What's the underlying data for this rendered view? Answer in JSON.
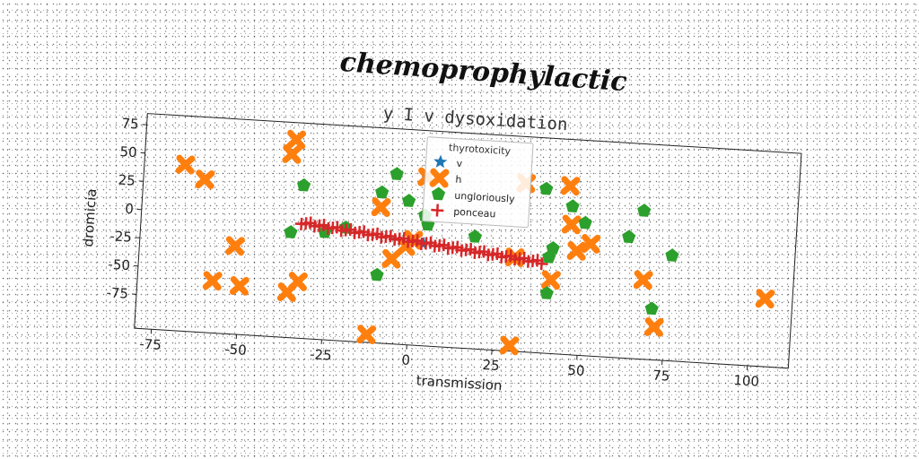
{
  "suptitle": "chemoprophylactic",
  "chart_data": {
    "type": "scatter",
    "title": "y I v dysoxidation",
    "xlabel": "transmission",
    "ylabel": "dromicia",
    "xlim": [
      -80,
      112
    ],
    "ylim": [
      -105,
      85
    ],
    "xticks": [
      "-75",
      "-50",
      "-25",
      "0",
      "25",
      "50",
      "75",
      "100"
    ],
    "xtick_values": [
      -75,
      -50,
      -25,
      0,
      25,
      50,
      75,
      100
    ],
    "yticks": [
      "75",
      "50",
      "25",
      "0",
      "-25",
      "-50",
      "-75"
    ],
    "ytick_values": [
      75,
      50,
      25,
      0,
      -25,
      -50,
      -75
    ],
    "legend": {
      "title": "thyrotoxicity",
      "position": "upper center"
    },
    "series": [
      {
        "name": "v",
        "marker": "star",
        "color": "#1f77b4",
        "points": [
          [
            3,
            -15
          ]
        ]
      },
      {
        "name": "h",
        "marker": "x",
        "color": "#ff7f0e",
        "points": [
          [
            -68,
            42
          ],
          [
            -62,
            30
          ],
          [
            -36,
            70
          ],
          [
            -37,
            57
          ],
          [
            -52,
            -27
          ],
          [
            -58,
            -59
          ],
          [
            -50,
            -62
          ],
          [
            -33,
            -55
          ],
          [
            -36,
            -65
          ],
          [
            -10,
            15
          ],
          [
            -6,
            -30
          ],
          [
            -2,
            -18
          ],
          [
            0,
            -12
          ],
          [
            3,
            44
          ],
          [
            -12,
            -98
          ],
          [
            30,
            -100
          ],
          [
            30,
            -22
          ],
          [
            32,
            44
          ],
          [
            45,
            44
          ],
          [
            46,
            10
          ],
          [
            41,
            -40
          ],
          [
            48,
            -13
          ],
          [
            52,
            -6
          ],
          [
            68,
            -35
          ],
          [
            72,
            -76
          ],
          [
            104,
            -45
          ]
        ]
      },
      {
        "name": "ungloriously",
        "marker": "pentagon",
        "color": "#2ca02c",
        "points": [
          [
            -36,
            -12
          ],
          [
            -33,
            30
          ],
          [
            -26,
            -10
          ],
          [
            -20,
            -5
          ],
          [
            -10,
            28
          ],
          [
            -6,
            45
          ],
          [
            -2,
            22
          ],
          [
            3,
            10
          ],
          [
            4,
            2
          ],
          [
            18,
            -6
          ],
          [
            38,
            40
          ],
          [
            41,
            -12
          ],
          [
            40,
            -20
          ],
          [
            40,
            -52
          ],
          [
            46,
            26
          ],
          [
            50,
            12
          ],
          [
            63,
            2
          ],
          [
            67,
            26
          ],
          [
            71,
            -60
          ],
          [
            76,
            -12
          ],
          [
            -10,
            -45
          ]
        ]
      },
      {
        "name": "ponceau",
        "marker": "plus",
        "color": "#d62728",
        "line": {
          "x_from": -33,
          "x_to": 38,
          "y_from": -3,
          "y_to": -25,
          "count": 55
        }
      }
    ]
  }
}
